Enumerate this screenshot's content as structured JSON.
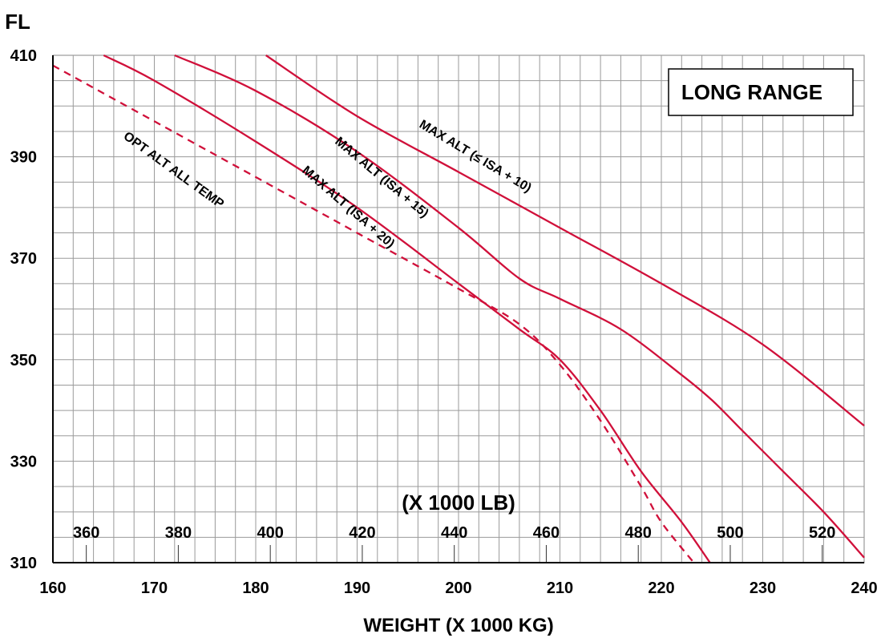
{
  "chart_data": {
    "type": "line",
    "title": "LONG RANGE",
    "xlabel": "WEIGHT (X 1000 KG)",
    "ylabel": "FL",
    "secondary_xlabel": "(X 1000 LB)",
    "xlim": [
      160,
      240
    ],
    "ylim": [
      310,
      410
    ],
    "x_ticks": [
      "160",
      "170",
      "180",
      "190",
      "200",
      "210",
      "220",
      "230",
      "240"
    ],
    "y_ticks": [
      "310",
      "330",
      "350",
      "370",
      "390",
      "410"
    ],
    "lb_ticks": [
      "360",
      "380",
      "400",
      "420",
      "440",
      "460",
      "480",
      "500",
      "520"
    ],
    "grid": true,
    "colors": {
      "series": "#d0103a",
      "grid": "#9a9a9a"
    },
    "series": [
      {
        "name": "MAX ALT (≤ ISA + 10)",
        "style": "solid",
        "x": [
          181,
          190,
          200,
          210,
          220,
          230,
          240
        ],
        "y": [
          410,
          398,
          387,
          376,
          365,
          353,
          337
        ]
      },
      {
        "name": "MAX ALT (ISA + 15)",
        "style": "solid",
        "x": [
          172,
          180,
          190,
          200,
          206,
          210,
          216,
          222,
          225,
          228,
          232,
          236,
          240
        ],
        "y": [
          410,
          403,
          391,
          376,
          366,
          362,
          356,
          347,
          342,
          336,
          328,
          320,
          311
        ]
      },
      {
        "name": "MAX ALT (ISA + 20)",
        "style": "solid",
        "x": [
          165,
          170,
          180,
          190,
          200,
          206,
          210,
          214,
          218,
          222,
          224.8
        ],
        "y": [
          410,
          405,
          393,
          380,
          365,
          356,
          350,
          340,
          328,
          318,
          310
        ]
      },
      {
        "name": "OPT ALT ALL TEMP",
        "style": "dashed",
        "x": [
          160,
          170,
          180,
          190,
          200,
          206,
          210,
          214,
          218,
          220,
          223.2
        ],
        "y": [
          408,
          397,
          386,
          375,
          364,
          357,
          349,
          338,
          325,
          318,
          310
        ]
      }
    ]
  }
}
